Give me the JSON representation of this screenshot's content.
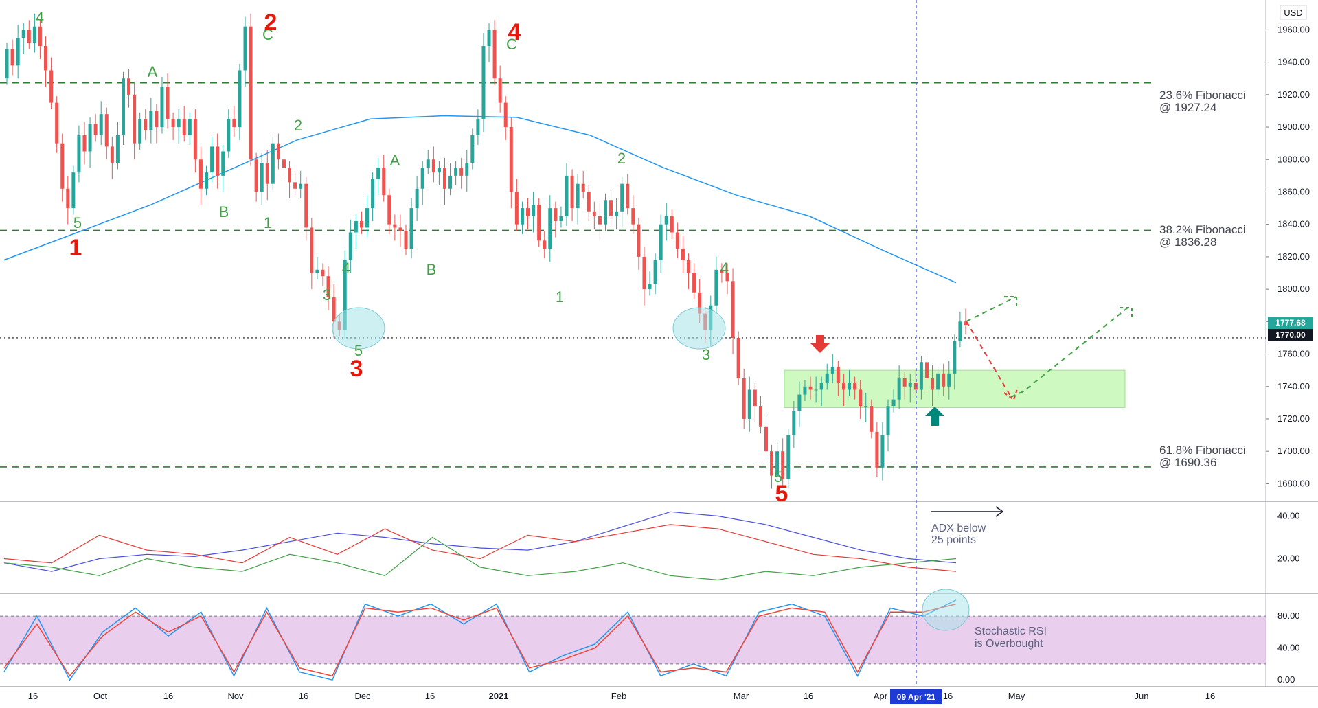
{
  "currency_label": "USD",
  "chart_data": [
    {
      "type": "candlestick",
      "panel": "price",
      "ylim": [
        1670,
        1975
      ],
      "y_ticks": [
        "1680.00",
        "1700.00",
        "1720.00",
        "1740.00",
        "1760.00",
        "1780.00",
        "1800.00",
        "1820.00",
        "1840.00",
        "1860.00",
        "1880.00",
        "1900.00",
        "1920.00",
        "1940.00",
        "1960.00"
      ],
      "x_ticks": [
        "16",
        "Oct",
        "16",
        "Nov",
        "16",
        "Dec",
        "16",
        "2021",
        "Feb",
        "16",
        "Mar",
        "16",
        "Apr",
        "16",
        "May",
        "Jun",
        "16"
      ],
      "current_price": "1777.68",
      "level_price": "1770.00",
      "fibonacci": [
        {
          "label": "23.6% Fibonacci",
          "value_label": "@ 1927.24",
          "value": 1927.24
        },
        {
          "label": "38.2% Fibonacci",
          "value_label": "@ 1836.28",
          "value": 1836.28
        },
        {
          "label": "61.8% Fibonacci",
          "value_label": "@ 1690.36",
          "value": 1690.36
        }
      ],
      "support_zone": [
        1727,
        1750
      ],
      "moving_average": [
        1818,
        1835,
        1852,
        1872,
        1892,
        1905,
        1907,
        1906,
        1895,
        1875,
        1858,
        1845,
        1824,
        1804
      ],
      "candles": [
        [
          1930,
          1948
        ],
        [
          1948,
          1938
        ],
        [
          1938,
          1955
        ],
        [
          1955,
          1960
        ],
        [
          1960,
          1952
        ],
        [
          1952,
          1962
        ],
        [
          1962,
          1950
        ],
        [
          1950,
          1935
        ],
        [
          1935,
          1915
        ],
        [
          1915,
          1890
        ],
        [
          1890,
          1862
        ],
        [
          1862,
          1850
        ],
        [
          1850,
          1872
        ],
        [
          1872,
          1895
        ],
        [
          1895,
          1885
        ],
        [
          1885,
          1902
        ],
        [
          1902,
          1895
        ],
        [
          1895,
          1908
        ],
        [
          1908,
          1888
        ],
        [
          1888,
          1878
        ],
        [
          1878,
          1895
        ],
        [
          1895,
          1930
        ],
        [
          1930,
          1920
        ],
        [
          1920,
          1890
        ],
        [
          1890,
          1905
        ],
        [
          1905,
          1898
        ],
        [
          1898,
          1910
        ],
        [
          1910,
          1900
        ],
        [
          1900,
          1925
        ],
        [
          1925,
          1905
        ],
        [
          1905,
          1900
        ],
        [
          1900,
          1905
        ],
        [
          1905,
          1895
        ],
        [
          1895,
          1905
        ],
        [
          1905,
          1880
        ],
        [
          1880,
          1862
        ],
        [
          1862,
          1872
        ],
        [
          1872,
          1888
        ],
        [
          1888,
          1870
        ],
        [
          1870,
          1885
        ],
        [
          1885,
          1905
        ],
        [
          1905,
          1900
        ],
        [
          1900,
          1935
        ],
        [
          1935,
          1962
        ],
        [
          1962,
          1880
        ],
        [
          1880,
          1860
        ],
        [
          1860,
          1878
        ],
        [
          1878,
          1865
        ],
        [
          1865,
          1890
        ],
        [
          1890,
          1880
        ],
        [
          1880,
          1875
        ],
        [
          1875,
          1866
        ],
        [
          1866,
          1862
        ],
        [
          1862,
          1865
        ],
        [
          1865,
          1838
        ],
        [
          1838,
          1810
        ],
        [
          1810,
          1812
        ],
        [
          1812,
          1808
        ],
        [
          1808,
          1795
        ],
        [
          1795,
          1780
        ],
        [
          1780,
          1775
        ],
        [
          1775,
          1818
        ],
        [
          1818,
          1835
        ],
        [
          1835,
          1842
        ],
        [
          1842,
          1838
        ],
        [
          1838,
          1850
        ],
        [
          1850,
          1868
        ],
        [
          1868,
          1875
        ],
        [
          1875,
          1858
        ],
        [
          1858,
          1840
        ],
        [
          1840,
          1838
        ],
        [
          1838,
          1836
        ],
        [
          1836,
          1825
        ],
        [
          1825,
          1850
        ],
        [
          1850,
          1862
        ],
        [
          1862,
          1875
        ],
        [
          1875,
          1880
        ],
        [
          1880,
          1872
        ],
        [
          1872,
          1875
        ],
        [
          1875,
          1862
        ],
        [
          1862,
          1870
        ],
        [
          1870,
          1875
        ],
        [
          1875,
          1870
        ],
        [
          1870,
          1878
        ],
        [
          1878,
          1895
        ],
        [
          1895,
          1905
        ],
        [
          1905,
          1950
        ],
        [
          1950,
          1960
        ],
        [
          1960,
          1930
        ],
        [
          1930,
          1915
        ],
        [
          1915,
          1900
        ],
        [
          1900,
          1860
        ],
        [
          1860,
          1840
        ],
        [
          1840,
          1850
        ],
        [
          1850,
          1845
        ],
        [
          1845,
          1852
        ],
        [
          1852,
          1830
        ],
        [
          1830,
          1825
        ],
        [
          1825,
          1850
        ],
        [
          1850,
          1842
        ],
        [
          1842,
          1845
        ],
        [
          1845,
          1870
        ],
        [
          1870,
          1850
        ],
        [
          1850,
          1865
        ],
        [
          1865,
          1860
        ],
        [
          1860,
          1848
        ],
        [
          1848,
          1845
        ],
        [
          1845,
          1840
        ],
        [
          1840,
          1855
        ],
        [
          1855,
          1845
        ],
        [
          1845,
          1848
        ],
        [
          1848,
          1865
        ],
        [
          1865,
          1850
        ],
        [
          1850,
          1840
        ],
        [
          1840,
          1820
        ],
        [
          1820,
          1800
        ],
        [
          1800,
          1803
        ],
        [
          1803,
          1818
        ],
        [
          1818,
          1840
        ],
        [
          1840,
          1845
        ],
        [
          1845,
          1835
        ],
        [
          1835,
          1825
        ],
        [
          1825,
          1818
        ],
        [
          1818,
          1810
        ],
        [
          1810,
          1798
        ],
        [
          1798,
          1785
        ],
        [
          1785,
          1775
        ],
        [
          1775,
          1790
        ],
        [
          1790,
          1812
        ],
        [
          1812,
          1810
        ],
        [
          1810,
          1805
        ],
        [
          1805,
          1770
        ],
        [
          1770,
          1745
        ],
        [
          1745,
          1720
        ],
        [
          1720,
          1738
        ],
        [
          1738,
          1728
        ],
        [
          1728,
          1715
        ],
        [
          1715,
          1700
        ],
        [
          1700,
          1685
        ],
        [
          1685,
          1700
        ],
        [
          1700,
          1683
        ],
        [
          1683,
          1710
        ],
        [
          1710,
          1725
        ],
        [
          1725,
          1735
        ],
        [
          1735,
          1740
        ],
        [
          1740,
          1738
        ],
        [
          1738,
          1738
        ],
        [
          1738,
          1742
        ],
        [
          1742,
          1748
        ],
        [
          1748,
          1752
        ],
        [
          1752,
          1742
        ],
        [
          1742,
          1738
        ],
        [
          1738,
          1742
        ],
        [
          1742,
          1738
        ],
        [
          1738,
          1728
        ],
        [
          1728,
          1728
        ],
        [
          1728,
          1712
        ],
        [
          1712,
          1690
        ],
        [
          1690,
          1710
        ],
        [
          1710,
          1728
        ],
        [
          1728,
          1732
        ],
        [
          1732,
          1745
        ],
        [
          1745,
          1740
        ],
        [
          1740,
          1742
        ],
        [
          1742,
          1738
        ],
        [
          1738,
          1755
        ],
        [
          1755,
          1745
        ],
        [
          1745,
          1738
        ],
        [
          1738,
          1748
        ],
        [
          1748,
          1740
        ],
        [
          1740,
          1748
        ],
        [
          1748,
          1768
        ],
        [
          1768,
          1780
        ],
        [
          1780,
          1778
        ]
      ],
      "wave_labels_green": [
        "4",
        "C",
        "A",
        "5",
        "B",
        "1",
        "2",
        "A",
        "4",
        "3",
        "5",
        "B",
        "C",
        "2",
        "1",
        "4",
        "3",
        "5"
      ],
      "wave_labels_red": [
        "2",
        "1",
        "4",
        "3",
        "5"
      ]
    },
    {
      "type": "line",
      "panel": "adx",
      "ylim": [
        5,
        45
      ],
      "y_ticks": [
        "20.00",
        "40.00"
      ],
      "series": [
        {
          "color": "#4a4ee0",
          "values": [
            18,
            14,
            20,
            22,
            21,
            24,
            28,
            32,
            30,
            27,
            25,
            24,
            28,
            35,
            42,
            40,
            36,
            30,
            24,
            20,
            18
          ]
        },
        {
          "color": "#e53935",
          "values": [
            20,
            18,
            31,
            24,
            22,
            18,
            30,
            22,
            34,
            24,
            20,
            31,
            28,
            32,
            36,
            34,
            28,
            22,
            20,
            16,
            14
          ]
        },
        {
          "color": "#43a047",
          "values": [
            18,
            16,
            12,
            20,
            16,
            14,
            22,
            18,
            12,
            30,
            16,
            12,
            14,
            18,
            12,
            10,
            14,
            12,
            16,
            18,
            20
          ]
        }
      ]
    },
    {
      "type": "line",
      "panel": "stoch_rsi",
      "ylim": [
        -5,
        105
      ],
      "y_ticks": [
        "0.00",
        "40.00",
        "80.00"
      ],
      "series": [
        {
          "color": "#2196f3",
          "values": [
            10,
            80,
            0,
            60,
            90,
            55,
            85,
            5,
            90,
            10,
            0,
            95,
            80,
            95,
            70,
            95,
            10,
            30,
            45,
            85,
            5,
            20,
            5,
            85,
            95,
            80,
            5,
            90,
            80,
            100
          ]
        },
        {
          "color": "#f44336",
          "values": [
            15,
            70,
            5,
            55,
            85,
            60,
            80,
            10,
            85,
            15,
            5,
            90,
            85,
            90,
            75,
            90,
            15,
            25,
            40,
            80,
            10,
            15,
            10,
            80,
            90,
            85,
            10,
            85,
            85,
            95
          ]
        }
      ],
      "overbought_band": [
        20,
        80
      ]
    }
  ],
  "annotations": {
    "date_marker": "09 Apr '21",
    "adx_note_line1": "ADX below",
    "adx_note_line2": "25 points",
    "stoch_note_line1": "Stochastic RSI",
    "stoch_note_line2": "is Overbought"
  },
  "colors": {
    "bull": "#26a69a",
    "bear": "#ef5350",
    "ma": "#2196f3",
    "fib_line": "#2e7d32",
    "zone": "#b9f6a6",
    "band": "#e1bee7",
    "date_marker_bg": "#1e3bd8",
    "price_tag_bg": "#26a69a",
    "level_tag_bg": "#131722"
  }
}
